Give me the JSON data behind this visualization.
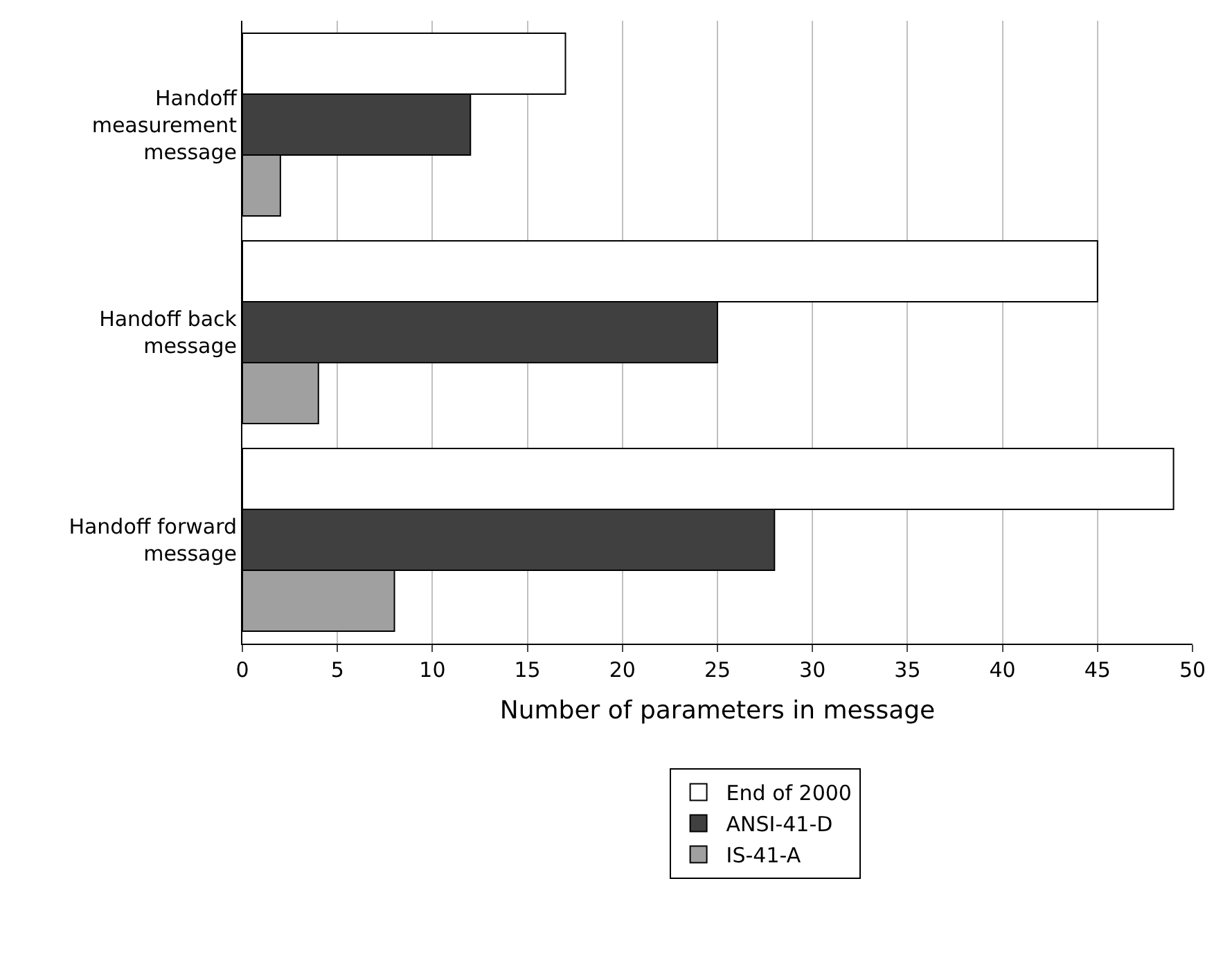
{
  "chart_data": {
    "type": "bar",
    "orientation": "horizontal",
    "xlabel": "Number of parameters in message",
    "categories": [
      "Handoff measurement message",
      "Handoff back message",
      "Handoff forward message"
    ],
    "series": [
      {
        "name": "End of 2000",
        "color": "#ffffff",
        "values": [
          17,
          45,
          49
        ]
      },
      {
        "name": "ANSI-41-D",
        "color": "#404040",
        "values": [
          12,
          25,
          28
        ]
      },
      {
        "name": "IS-41-A",
        "color": "#a0a0a0",
        "values": [
          2,
          4,
          8
        ]
      }
    ],
    "xlim": [
      0,
      50
    ],
    "xticks": [
      0,
      5,
      10,
      15,
      20,
      25,
      30,
      35,
      40,
      45,
      50
    ],
    "grid": "x",
    "legend": "bottom"
  }
}
